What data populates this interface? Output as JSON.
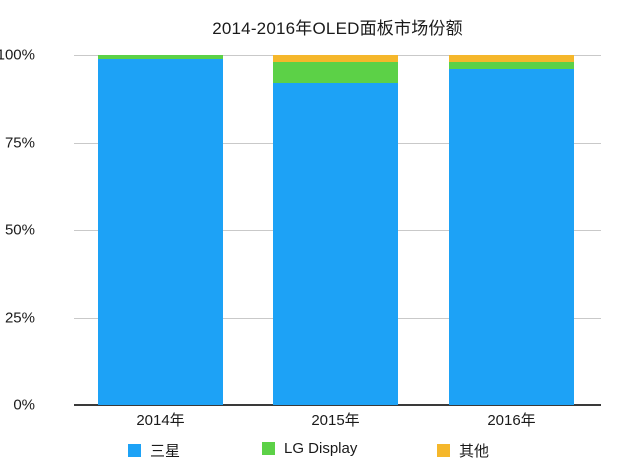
{
  "title": "2014-2016年OLED面板市场份额",
  "colors": {
    "samsung_blue": "#1da2f6",
    "lg_green": "#5cd147",
    "other_orange": "#f5b72b",
    "gridline": "#c9c9c9",
    "axis_line": "#3a3a3a",
    "text": "#1a1a1a",
    "background": "#ffffff"
  },
  "chart_data": {
    "type": "bar",
    "stacked": true,
    "units": "percent",
    "title": "2014-2016年OLED面板市场份额",
    "categories": [
      "2014年",
      "2015年",
      "2016年"
    ],
    "series": [
      {
        "name": "三星",
        "color": "#1da2f6",
        "values": [
          99,
          92,
          96
        ]
      },
      {
        "name": "LG Display",
        "color": "#5cd147",
        "values": [
          1,
          6,
          2
        ]
      },
      {
        "name": "其他",
        "color": "#f5b72b",
        "values": [
          0,
          2,
          2
        ]
      }
    ],
    "xlabel": "",
    "ylabel": "",
    "ylim": [
      0,
      100
    ],
    "y_ticks": [
      {
        "label": "0%",
        "value": 0
      },
      {
        "label": "25%",
        "value": 25
      },
      {
        "label": "50%",
        "value": 50
      },
      {
        "label": "75%",
        "value": 75
      },
      {
        "label": "100%",
        "value": 100
      }
    ],
    "grid": true,
    "legend_position": "bottom"
  }
}
